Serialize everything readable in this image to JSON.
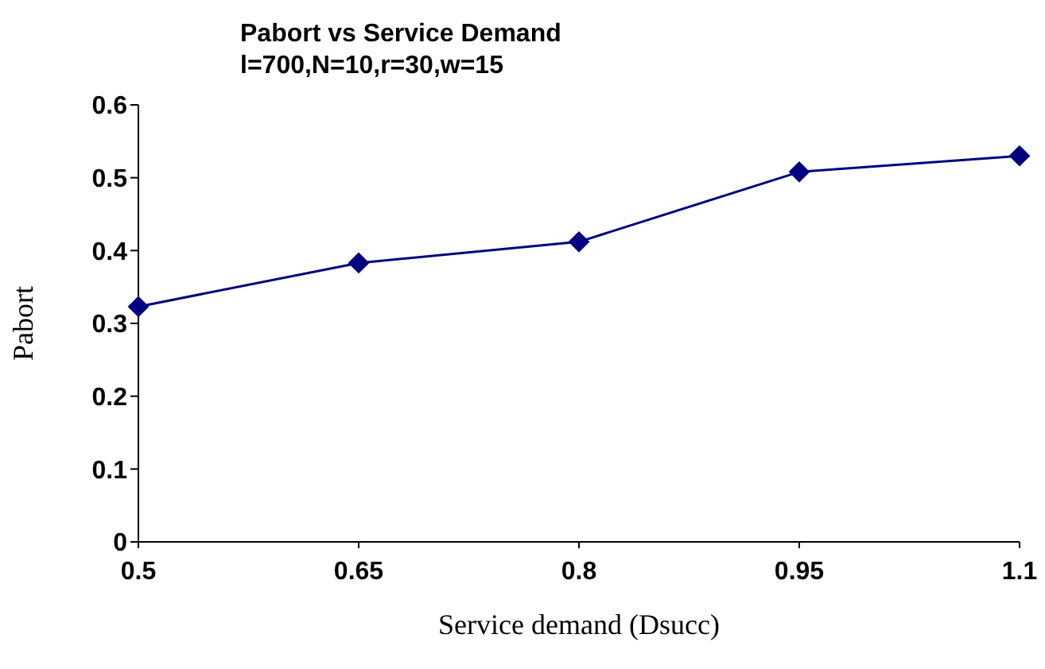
{
  "chart_data": {
    "type": "line",
    "title": "Pabort  vs Service Demand",
    "subtitle": "l=700,N=10,r=30,w=15",
    "xlabel": "Service demand (Dsucc)",
    "ylabel": "Pabort",
    "x": [
      0.5,
      0.65,
      0.8,
      0.95,
      1.1
    ],
    "series": [
      {
        "color": "#000080",
        "values": [
          0.323,
          0.383,
          0.412,
          0.508,
          0.53
        ]
      }
    ],
    "xlim": [
      0.5,
      1.1
    ],
    "xticks": [
      0.5,
      0.65,
      0.8,
      0.95,
      1.1
    ],
    "ylim": [
      0,
      0.6
    ],
    "yticks": [
      0,
      0.1,
      0.2,
      0.3,
      0.4,
      0.5,
      0.6
    ],
    "marker": "diamond",
    "line_style": "solid",
    "grid": false,
    "legend": false
  }
}
